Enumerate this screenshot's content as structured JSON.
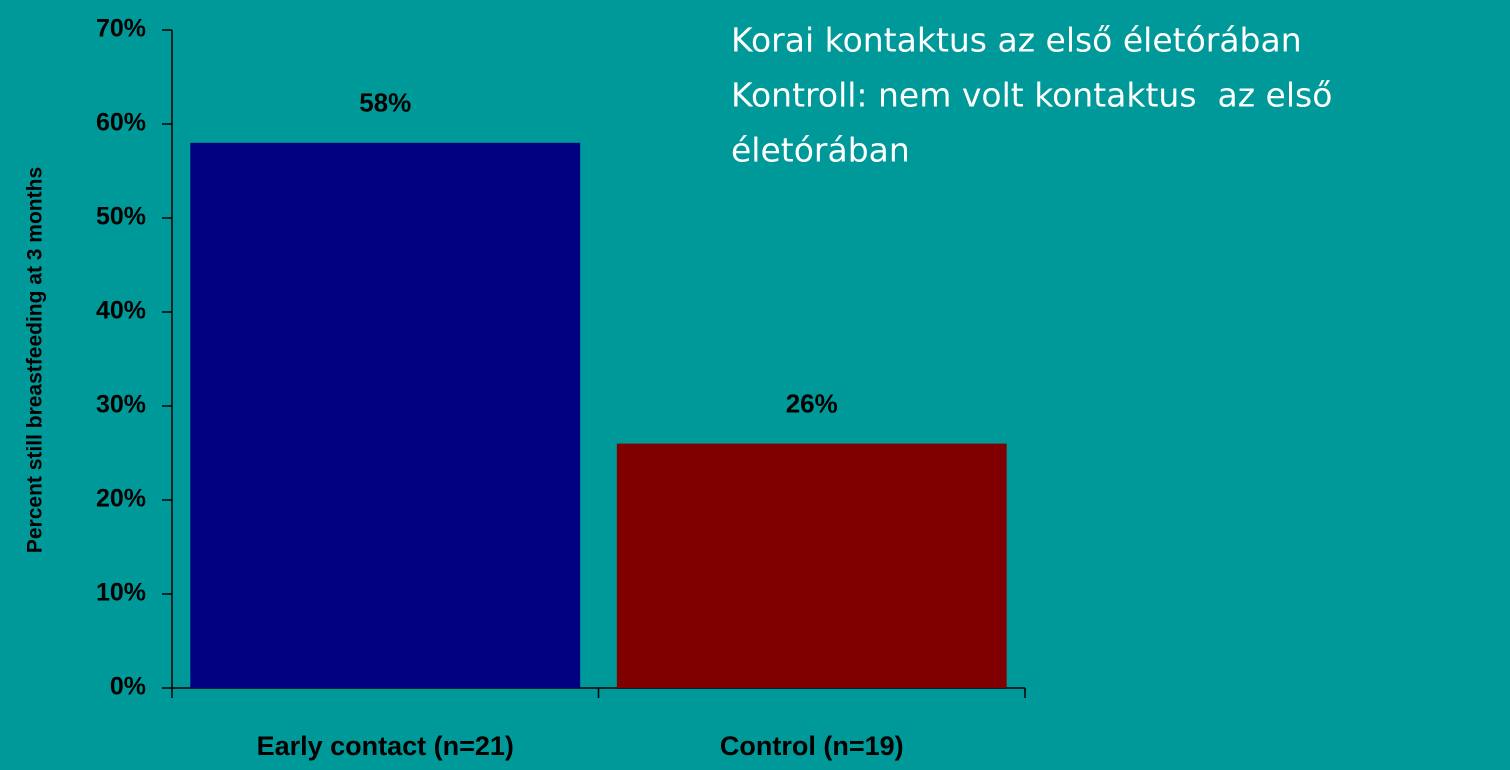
{
  "chart_data": {
    "type": "bar",
    "ylabel": "Percent still breastfeeding at 3 months",
    "categories": [
      "Early contact (n=21)",
      "Control (n=19)"
    ],
    "values": [
      58,
      26
    ],
    "value_labels": [
      "58%",
      "26%"
    ],
    "colors": [
      "#000080",
      "#800000"
    ],
    "ylim": [
      0,
      70
    ],
    "yticks": [
      {
        "value": 0,
        "label": "0%"
      },
      {
        "value": 10,
        "label": "10%"
      },
      {
        "value": 20,
        "label": "20%"
      },
      {
        "value": 30,
        "label": "30%"
      },
      {
        "value": 40,
        "label": "40%"
      },
      {
        "value": 50,
        "label": "50%"
      },
      {
        "value": 60,
        "label": "60%"
      },
      {
        "value": 70,
        "label": "70%"
      }
    ],
    "grid": false,
    "annotation": [
      "Korai kontaktus az első életórában",
      "Kontroll: nem volt kontaktus  az első",
      "életórában"
    ]
  }
}
